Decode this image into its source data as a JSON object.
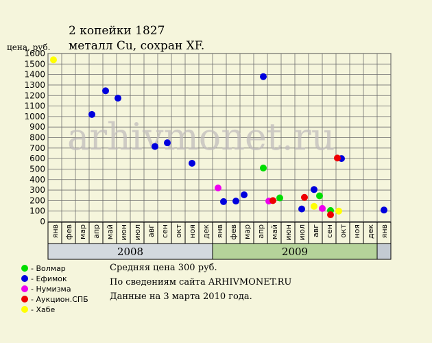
{
  "header": {
    "title": "2 копейки 1827",
    "subtitle": "металл Cu, сохран XF."
  },
  "watermark": "arhivmonet.ru",
  "colors": {
    "background": "#f5f5dc",
    "year_2008": "#d3d9de",
    "year_2009": "#b5d39a",
    "year_2010": "#c3cad2"
  },
  "legend": [
    {
      "label": "- Волмар",
      "color": "#00dd00"
    },
    {
      "label": "- Ефимок",
      "color": "#0000dd"
    },
    {
      "label": "- Нумизма",
      "color": "#ee00ee"
    },
    {
      "label": "- Аукцион.СПБ",
      "color": "#ee0000"
    },
    {
      "label": "- Хабе",
      "color": "#ffff00"
    }
  ],
  "info": {
    "avg": "Средняя цена 300 руб.",
    "source": "По  сведениям сайта ARHIVMONET.RU",
    "date": "Данные на 3 марта 2010 года."
  },
  "chart_data": {
    "type": "scatter",
    "ylabel": "цена, руб.",
    "ylim": [
      0,
      1600
    ],
    "yticks": [
      0,
      100,
      200,
      300,
      400,
      500,
      600,
      700,
      800,
      900,
      1000,
      1100,
      1200,
      1300,
      1400,
      1500,
      1600
    ],
    "grid": true,
    "months": [
      "янв",
      "фев",
      "мар",
      "апр",
      "май",
      "июн",
      "июл",
      "авг",
      "сен",
      "окт",
      "ноя",
      "дек",
      "янв",
      "фев",
      "мар",
      "апр",
      "май",
      "июн",
      "июл",
      "авг",
      "сен",
      "окт",
      "ноя",
      "дек",
      "янв"
    ],
    "years": [
      {
        "label": "2008",
        "start": 0,
        "end": 12
      },
      {
        "label": "2009",
        "start": 12,
        "end": 24
      },
      {
        "label": "",
        "start": 24,
        "end": 25
      }
    ],
    "series": [
      {
        "name": "Волмар",
        "color": "#00dd00",
        "points": [
          [
            15.7,
            510
          ],
          [
            16.9,
            225
          ],
          [
            19.8,
            245
          ],
          [
            20.6,
            105
          ]
        ]
      },
      {
        "name": "Ефимок",
        "color": "#0000dd",
        "points": [
          [
            3.2,
            1020
          ],
          [
            4.2,
            1245
          ],
          [
            5.1,
            1175
          ],
          [
            7.8,
            715
          ],
          [
            8.7,
            750
          ],
          [
            10.5,
            555
          ],
          [
            12.8,
            190
          ],
          [
            13.7,
            195
          ],
          [
            14.3,
            255
          ],
          [
            15.7,
            1380
          ],
          [
            18.5,
            120
          ],
          [
            19.4,
            305
          ],
          [
            21.4,
            600
          ],
          [
            24.5,
            110
          ]
        ]
      },
      {
        "name": "Нумизма",
        "color": "#ee00ee",
        "points": [
          [
            12.4,
            320
          ],
          [
            16.1,
            195
          ],
          [
            20.0,
            125
          ]
        ]
      },
      {
        "name": "Аукцион.СПБ",
        "color": "#ee0000",
        "points": [
          [
            16.4,
            200
          ],
          [
            18.7,
            230
          ],
          [
            20.6,
            65
          ],
          [
            21.1,
            605
          ]
        ]
      },
      {
        "name": "Хабе",
        "color": "#ffff00",
        "points": [
          [
            0.4,
            1540
          ],
          [
            19.4,
            145
          ],
          [
            21.2,
            100
          ]
        ]
      }
    ]
  }
}
